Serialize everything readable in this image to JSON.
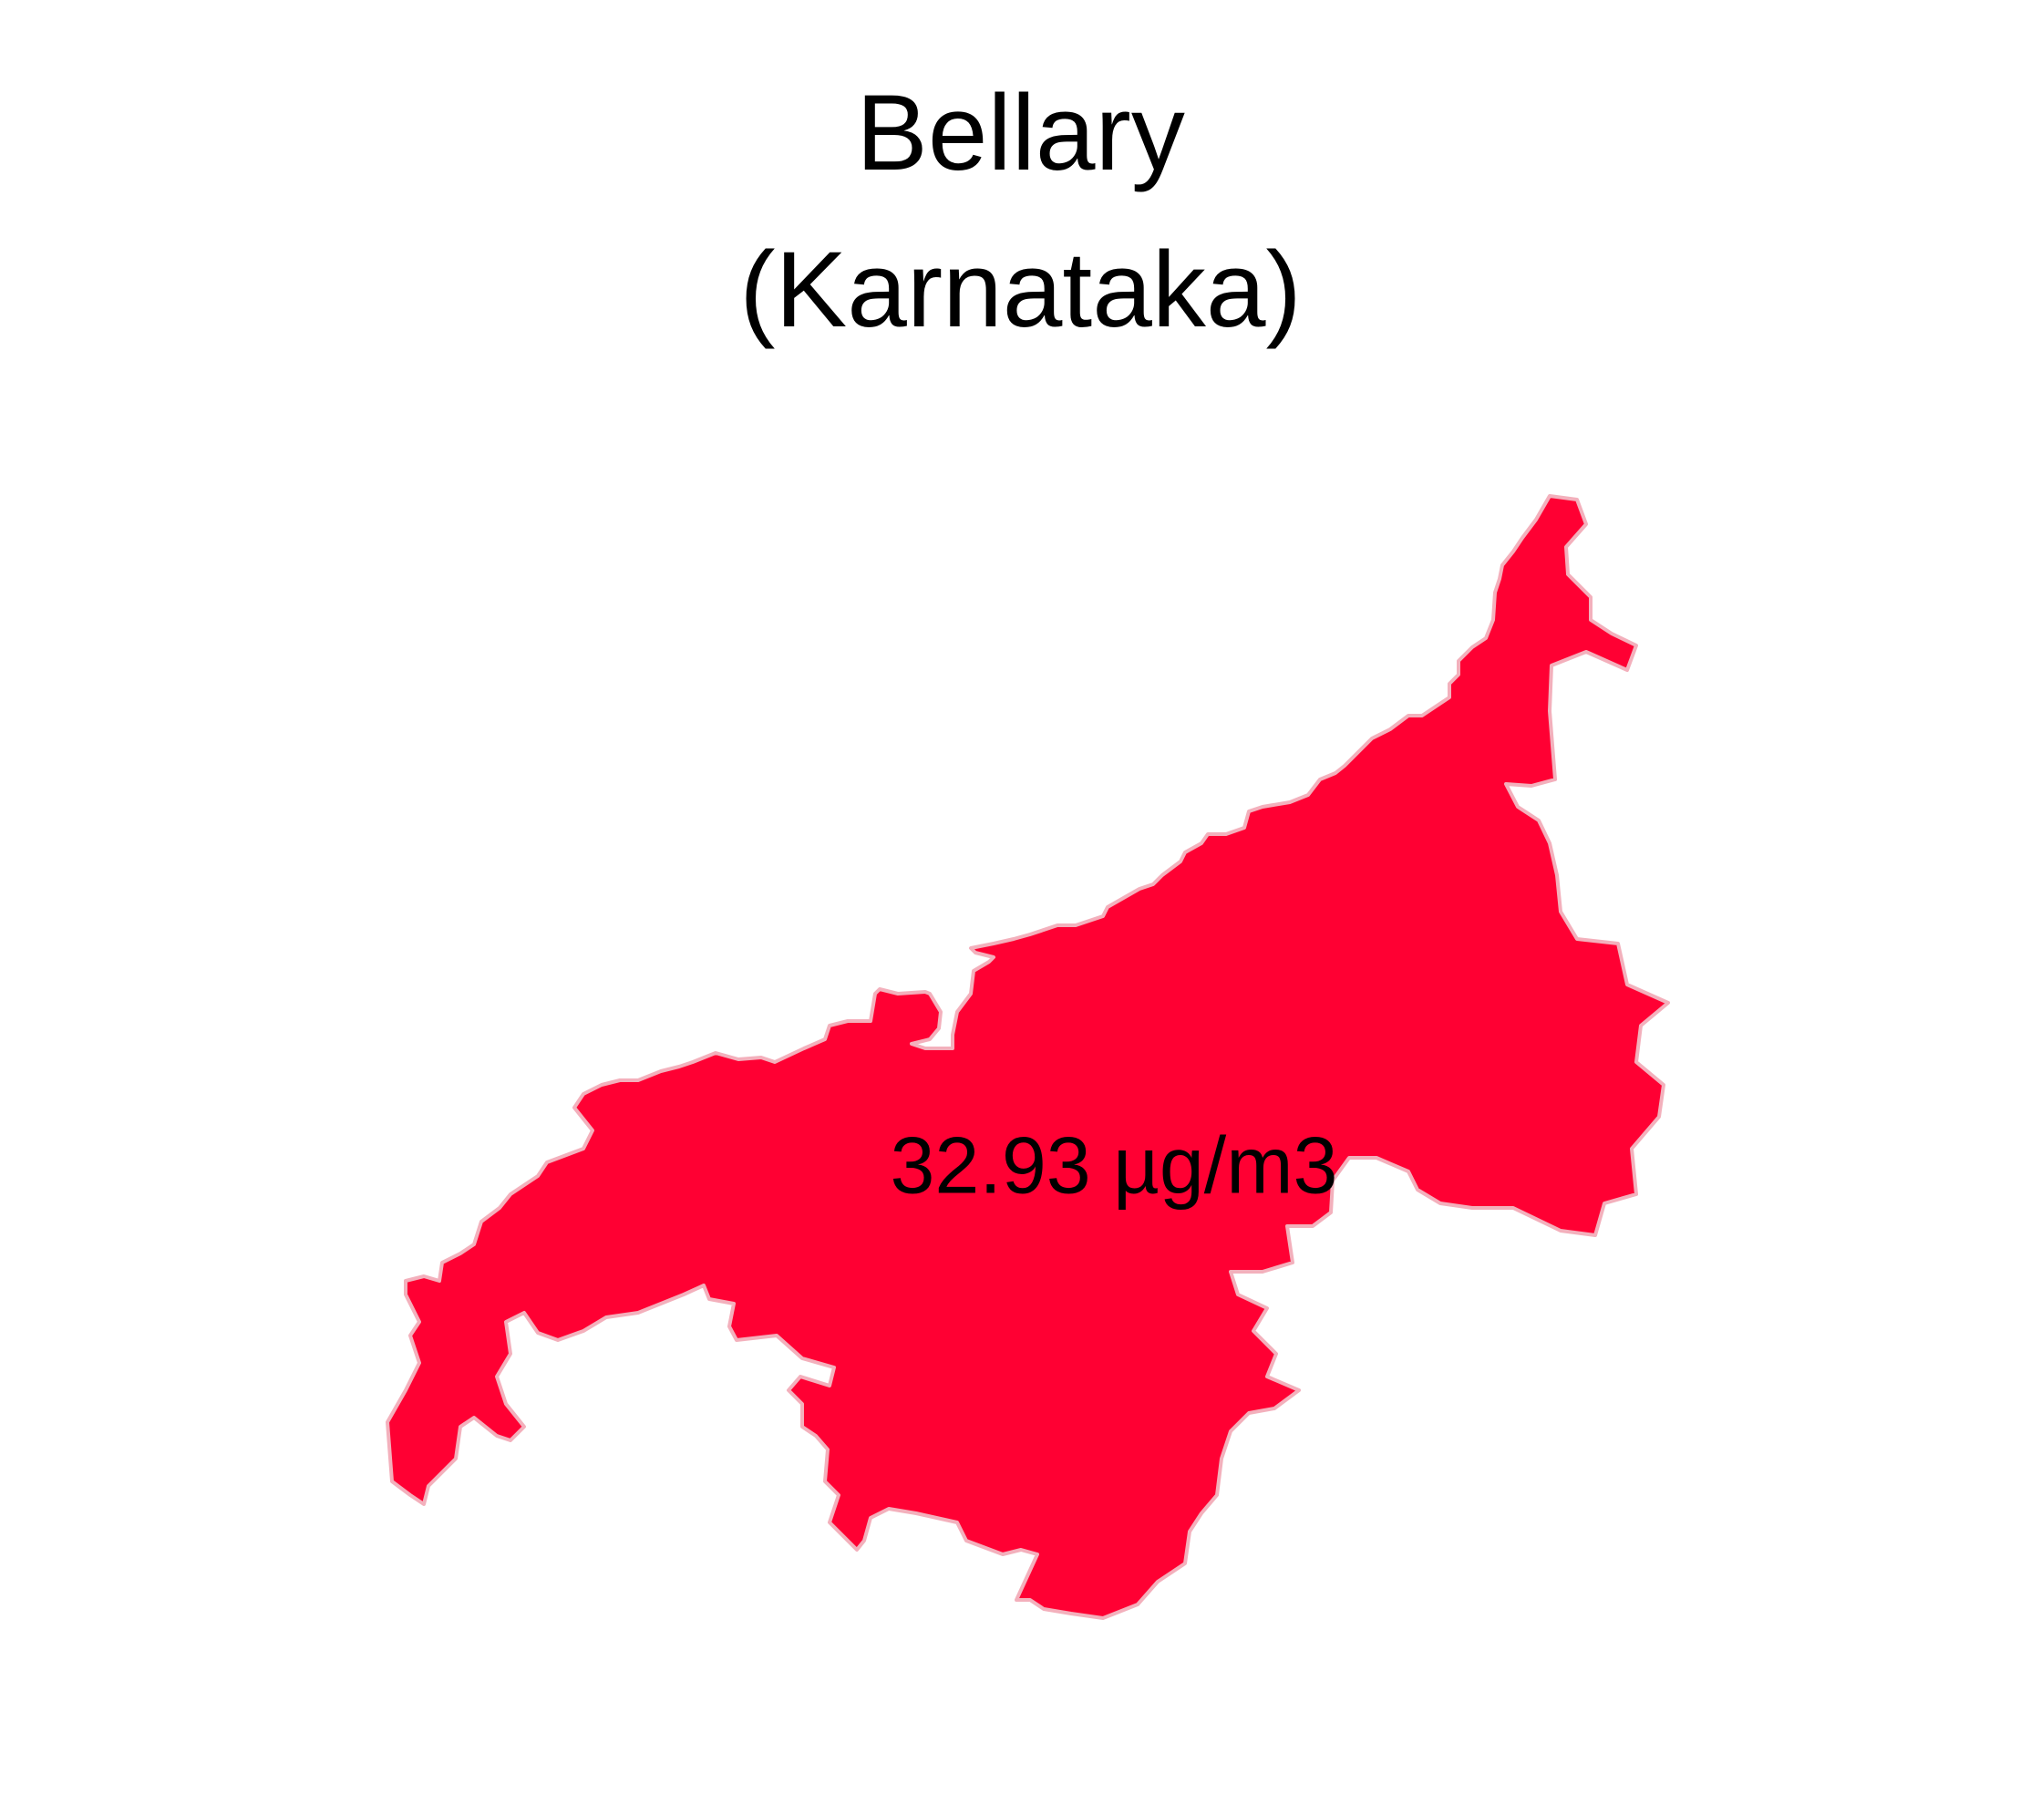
{
  "map": {
    "title": "Bellary",
    "subtitle": "(Karnataka)",
    "region": {
      "value_label": "32.93 µg/m3",
      "fill_color": "#FF0033",
      "outline_color": "#F3B0BC"
    },
    "background_color": "#FFFFFF"
  }
}
